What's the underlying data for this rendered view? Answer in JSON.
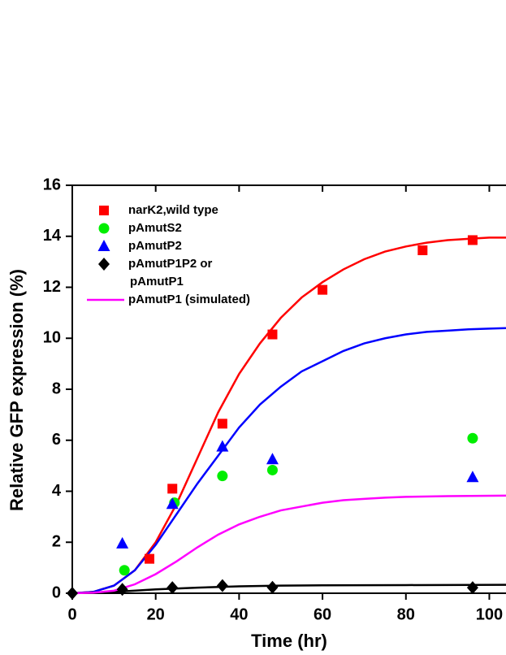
{
  "chart_data": {
    "type": "scatter",
    "xlabel": "Time (hr)",
    "ylabel": "Relative GFP expression (%)",
    "xlim": [
      0,
      104
    ],
    "ylim": [
      0,
      16
    ],
    "xticks": [
      0,
      20,
      40,
      60,
      80,
      100
    ],
    "yticks": [
      0,
      2,
      4,
      6,
      8,
      10,
      12,
      14,
      16
    ],
    "series": [
      {
        "name": [
          "narK2,wild type"
        ],
        "color": "#ff0000",
        "marker": "square",
        "x": [
          18.5,
          24,
          36,
          48,
          60,
          84,
          96
        ],
        "values": [
          1.35,
          4.1,
          6.65,
          10.15,
          11.9,
          13.45,
          13.85
        ]
      },
      {
        "name": [
          "pAmutS2"
        ],
        "color": "#00ee00",
        "marker": "circle",
        "x": [
          12.5,
          24.5,
          36,
          48,
          96
        ],
        "values": [
          0.9,
          3.55,
          4.6,
          4.83,
          6.08
        ]
      },
      {
        "name": [
          "pAmutP2"
        ],
        "color": "#0000ff",
        "marker": "triangle",
        "x": [
          12,
          24,
          36,
          48,
          96
        ],
        "values": [
          1.95,
          3.5,
          5.75,
          5.25,
          4.55
        ]
      },
      {
        "name": [
          "pAmutP1P2 or",
          "pAmutP1"
        ],
        "color": "#000000",
        "marker": "diamond",
        "x": [
          0,
          12,
          24,
          36,
          48,
          96
        ],
        "values": [
          0,
          0.15,
          0.22,
          0.3,
          0.23,
          0.22
        ]
      }
    ],
    "curves": [
      {
        "color": "#ff0000",
        "x": [
          0,
          5,
          10,
          15,
          20,
          25,
          30,
          35,
          40,
          45,
          50,
          55,
          60,
          65,
          70,
          75,
          80,
          85,
          90,
          95,
          100,
          104
        ],
        "values": [
          0,
          0.05,
          0.3,
          0.9,
          2.0,
          3.5,
          5.3,
          7.1,
          8.6,
          9.8,
          10.8,
          11.6,
          12.2,
          12.7,
          13.1,
          13.4,
          13.6,
          13.75,
          13.85,
          13.9,
          13.95,
          13.95
        ]
      },
      {
        "color": "#0000ff",
        "x": [
          0,
          5,
          10,
          15,
          20,
          25,
          30,
          35,
          40,
          45,
          50,
          55,
          60,
          65,
          70,
          75,
          80,
          85,
          90,
          95,
          100,
          104
        ],
        "values": [
          0,
          0.05,
          0.3,
          0.9,
          1.9,
          3.1,
          4.3,
          5.4,
          6.5,
          7.4,
          8.1,
          8.7,
          9.1,
          9.5,
          9.8,
          10.0,
          10.15,
          10.25,
          10.3,
          10.35,
          10.38,
          10.4
        ]
      },
      {
        "color": "#000000",
        "x": [
          0,
          10,
          20,
          30,
          40,
          50,
          60,
          80,
          104
        ],
        "values": [
          0,
          0.05,
          0.15,
          0.22,
          0.27,
          0.3,
          0.31,
          0.32,
          0.33
        ]
      },
      {
        "name": [
          "pAmutP1 (simulated)"
        ],
        "color": "#ff00ff",
        "x": [
          0,
          5,
          10,
          15,
          20,
          25,
          30,
          35,
          40,
          45,
          50,
          55,
          60,
          65,
          70,
          75,
          80,
          90,
          104
        ],
        "values": [
          0,
          0.02,
          0.1,
          0.35,
          0.75,
          1.25,
          1.8,
          2.3,
          2.7,
          3.0,
          3.25,
          3.4,
          3.55,
          3.65,
          3.7,
          3.75,
          3.78,
          3.81,
          3.83
        ]
      }
    ]
  }
}
